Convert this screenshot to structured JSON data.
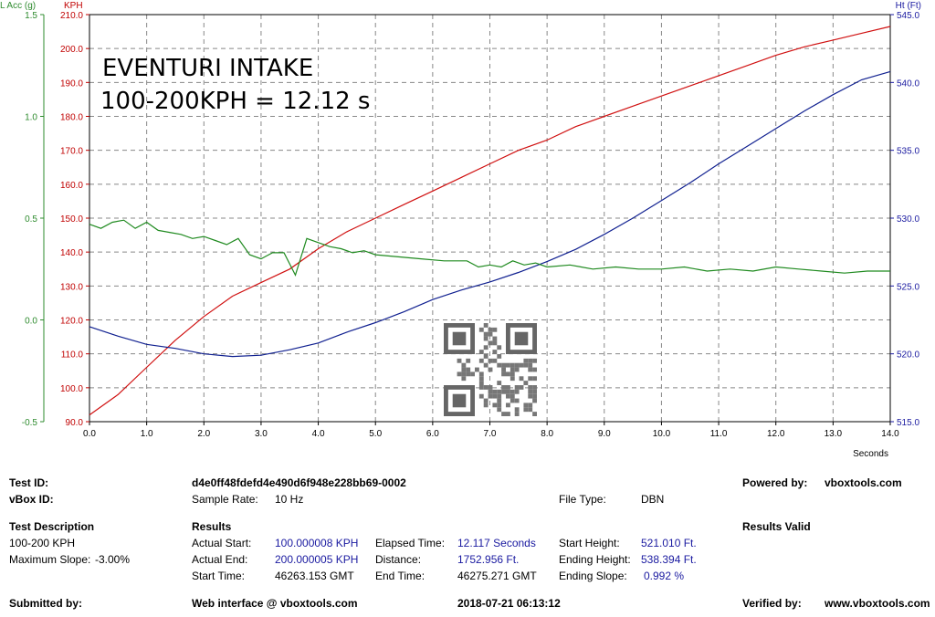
{
  "chart_data": {
    "type": "line",
    "title": "EVENTURI INTAKE",
    "subtitle": "100-200KPH = 12.12 s",
    "xlabel": "Seconds",
    "xlim": [
      0,
      14
    ],
    "x_ticks": [
      "0.0",
      "1.0",
      "2.0",
      "3.0",
      "4.0",
      "5.0",
      "6.0",
      "7.0",
      "8.0",
      "9.0",
      "10.0",
      "11.0",
      "12.0",
      "13.0",
      "14.0"
    ],
    "grid": true,
    "axes": {
      "lacc": {
        "label": "L Acc (g)",
        "range": [
          -0.5,
          1.5
        ],
        "ticks": [
          "1.5",
          "1.0",
          "0.5",
          "0.0",
          "-0.5"
        ],
        "color": "#2e8b2e"
      },
      "kph": {
        "label": "KPH",
        "range": [
          90,
          210
        ],
        "ticks": [
          "210.0",
          "200.0",
          "190.0",
          "180.0",
          "170.0",
          "160.0",
          "150.0",
          "140.0",
          "130.0",
          "120.0",
          "110.0",
          "100.0",
          "90.0"
        ],
        "color": "#c00000"
      },
      "ht": {
        "label": "Ht (Ft)",
        "range": [
          515,
          545
        ],
        "ticks": [
          "545.0",
          "540.0",
          "535.0",
          "530.0",
          "525.0",
          "520.0",
          "515.0"
        ],
        "color": "#1a1aa0"
      }
    },
    "series": [
      {
        "name": "KPH",
        "axis": "kph",
        "color": "#d01010",
        "x": [
          0,
          0.5,
          1,
          1.5,
          2,
          2.5,
          3,
          3.5,
          4,
          4.5,
          5,
          5.5,
          6,
          6.5,
          7,
          7.5,
          8,
          8.5,
          9,
          9.5,
          10,
          10.5,
          11,
          11.5,
          12,
          12.5,
          13,
          13.5,
          14
        ],
        "values": [
          92,
          98,
          106,
          114,
          121,
          127,
          131,
          135,
          141,
          146,
          150,
          154,
          158,
          162,
          166,
          170,
          173,
          177,
          180,
          183,
          186,
          189,
          192,
          195,
          198,
          200.5,
          202.5,
          204.5,
          206.5
        ]
      },
      {
        "name": "Ht (Ft)",
        "axis": "ht",
        "color": "#102090",
        "x": [
          0,
          0.5,
          1,
          1.5,
          2,
          2.5,
          3,
          3.5,
          4,
          4.5,
          5,
          5.5,
          6,
          6.5,
          7,
          7.5,
          8,
          8.5,
          9,
          9.5,
          10,
          10.5,
          11,
          11.5,
          12,
          12.5,
          13,
          13.5,
          14
        ],
        "values": [
          522.0,
          521.3,
          520.7,
          520.4,
          520.0,
          519.8,
          519.9,
          520.3,
          520.8,
          521.6,
          522.3,
          523.1,
          524.0,
          524.7,
          525.3,
          526.0,
          526.8,
          527.7,
          528.8,
          530.0,
          531.3,
          532.6,
          534.0,
          535.3,
          536.6,
          537.9,
          539.1,
          540.2,
          540.8
        ]
      },
      {
        "name": "L Acc (g)",
        "axis": "lacc",
        "color": "#1f8a1f",
        "x": [
          0,
          0.2,
          0.4,
          0.6,
          0.8,
          1.0,
          1.2,
          1.4,
          1.6,
          1.8,
          2.0,
          2.2,
          2.4,
          2.6,
          2.8,
          3.0,
          3.2,
          3.4,
          3.6,
          3.8,
          4.0,
          4.2,
          4.4,
          4.6,
          4.8,
          5.0,
          5.4,
          5.8,
          6.2,
          6.6,
          6.8,
          7.0,
          7.2,
          7.4,
          7.6,
          7.8,
          8.0,
          8.4,
          8.8,
          9.2,
          9.6,
          10.0,
          10.4,
          10.8,
          11.2,
          11.6,
          12.0,
          12.4,
          12.8,
          13.2,
          13.6,
          14.0
        ],
        "values": [
          0.47,
          0.45,
          0.48,
          0.49,
          0.45,
          0.48,
          0.44,
          0.43,
          0.42,
          0.4,
          0.41,
          0.39,
          0.37,
          0.4,
          0.32,
          0.3,
          0.33,
          0.33,
          0.22,
          0.4,
          0.38,
          0.36,
          0.35,
          0.33,
          0.34,
          0.32,
          0.31,
          0.3,
          0.29,
          0.29,
          0.26,
          0.27,
          0.26,
          0.29,
          0.27,
          0.28,
          0.26,
          0.27,
          0.25,
          0.26,
          0.25,
          0.25,
          0.26,
          0.24,
          0.25,
          0.24,
          0.26,
          0.25,
          0.24,
          0.23,
          0.24,
          0.24
        ]
      }
    ]
  },
  "details": {
    "test_id_label": "Test ID:",
    "test_id": "d4e0ff48fdefd4e490d6f948e228bb69-0002",
    "powered_by_label": "Powered by:",
    "powered_by": "vboxtools.com",
    "vbox_id_label": "vBox ID:",
    "sample_rate_label": "Sample Rate:",
    "sample_rate": "10 Hz",
    "file_type_label": "File Type:",
    "file_type": "DBN",
    "description_label": "Test Description",
    "description": "100-200 KPH",
    "max_slope_label": "Maximum Slope:",
    "max_slope": "-3.00%",
    "results_label": "Results",
    "results_valid": "Results Valid",
    "actual_start_label": "Actual Start:",
    "actual_start": "100.000008 KPH",
    "actual_end_label": "Actual End:",
    "actual_end": "200.000005 KPH",
    "start_time_label": "Start Time:",
    "start_time": "46263.153 GMT",
    "elapsed_time_label": "Elapsed Time:",
    "elapsed_time": "12.117 Seconds",
    "distance_label": "Distance:",
    "distance": "1752.956 Ft.",
    "end_time_label": "End Time:",
    "end_time": "46275.271 GMT",
    "start_height_label": "Start Height:",
    "start_height": "521.010 Ft.",
    "ending_height_label": "Ending Height:",
    "ending_height": "538.394 Ft.",
    "ending_slope_label": "Ending Slope:",
    "ending_slope": "0.992 %",
    "submitted_by_label": "Submitted by:",
    "web_interface": "Web interface @ vboxtools.com",
    "datetime": "2018-07-21 06:13:12",
    "verified_by_label": "Verified by:",
    "verified_by": "www.vboxtools.com"
  }
}
